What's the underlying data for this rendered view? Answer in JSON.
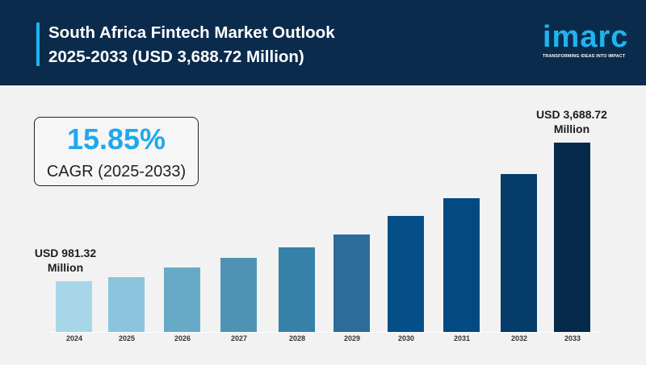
{
  "header": {
    "title_line1": "South Africa Fintech Market Outlook",
    "title_line2": "2025-2033 (USD 3,688.72 Million)",
    "logo": "imarc",
    "tagline": "TRANSFORMING IDEAS INTO IMPACT"
  },
  "cagr": {
    "value": "15.85%",
    "label": "CAGR (2025-2033)"
  },
  "colors": {
    "header_bg": "#0b2b4c",
    "accent": "#1fb4f0",
    "background": "#f2f2f2"
  },
  "chart_data": {
    "type": "bar",
    "categories": [
      "2024",
      "2025",
      "2026",
      "2027",
      "2028",
      "2029",
      "2030",
      "2031",
      "2032",
      "2033"
    ],
    "values": [
      981.32,
      1067,
      1256,
      1444,
      1649,
      1900,
      2261,
      2606,
      3077,
      3688.72
    ],
    "colors": [
      "#a8d6e9",
      "#8cc4de",
      "#67aac8",
      "#4e93b4",
      "#3581a8",
      "#2b6d98",
      "#06508a",
      "#034a82",
      "#053c69",
      "#062a4c"
    ],
    "annotations": [
      {
        "category": "2024",
        "line1": "USD 981.32",
        "line2": "Million"
      },
      {
        "category": "2033",
        "line1": "USD 3,688.72",
        "line2": "Million"
      }
    ],
    "grid": false,
    "yaxis_visible": false
  }
}
